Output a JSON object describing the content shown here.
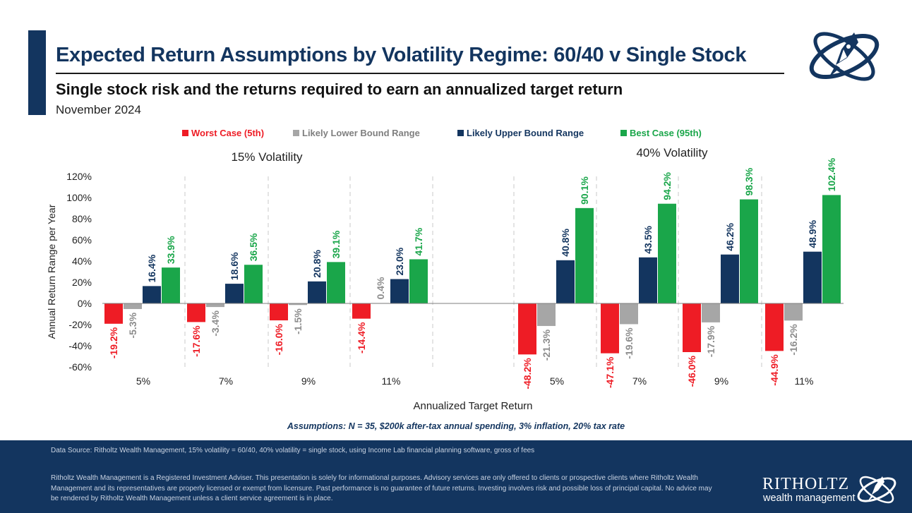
{
  "header": {
    "title": "Expected Return Assumptions by Volatility Regime: 60/40 v Single Stock",
    "subtitle": "Single stock risk and the returns required to earn an annualized target return",
    "date": "November 2024"
  },
  "colors": {
    "navy": "#13355f",
    "worst": "#ee1c25",
    "lower": "#a6a6a6",
    "upper": "#13355f",
    "best": "#1aa64a"
  },
  "chart_data": {
    "type": "bar",
    "legend": [
      "Worst Case (5th)",
      "Likely Lower Bound Range",
      "Likely Upper Bound Range",
      "Best Case (95th)"
    ],
    "legend_position": "top",
    "ylabel": "Annual Return Range per Year",
    "xlabel": "Annualized Target Return",
    "ylim": [
      -60,
      120
    ],
    "yticks": [
      120,
      100,
      80,
      60,
      40,
      20,
      0,
      -20,
      -40,
      -60
    ],
    "ytick_labels": [
      "120%",
      "100%",
      "80%",
      "60%",
      "40%",
      "20%",
      "0%",
      "-20%",
      "-40%",
      "-60%"
    ],
    "groups": [
      {
        "label": "15% Volatility",
        "categories": [
          "5%",
          "7%",
          "9%",
          "11%"
        ],
        "series": [
          {
            "name": "Worst Case (5th)",
            "values": [
              -19.2,
              -17.6,
              -16.0,
              -14.4
            ],
            "labels": [
              "-19.2%",
              "-17.6%",
              "-16.0%",
              "-14.4%"
            ]
          },
          {
            "name": "Likely Lower Bound Range",
            "values": [
              -5.3,
              -3.4,
              -1.5,
              0.4
            ],
            "labels": [
              "-5.3%",
              "-3.4%",
              "-1.5%",
              "0.4%"
            ]
          },
          {
            "name": "Likely Upper Bound Range",
            "values": [
              16.4,
              18.6,
              20.8,
              23.0
            ],
            "labels": [
              "16.4%",
              "18.6%",
              "20.8%",
              "23.0%"
            ]
          },
          {
            "name": "Best Case (95th)",
            "values": [
              33.9,
              36.5,
              39.1,
              41.7
            ],
            "labels": [
              "33.9%",
              "36.5%",
              "39.1%",
              "41.7%"
            ]
          }
        ]
      },
      {
        "label": "40% Volatility",
        "categories": [
          "5%",
          "7%",
          "9%",
          "11%"
        ],
        "series": [
          {
            "name": "Worst Case (5th)",
            "values": [
              -48.2,
              -47.1,
              -46.0,
              -44.9
            ],
            "labels": [
              "-48.2%",
              "-47.1%",
              "-46.0%",
              "-44.9%"
            ]
          },
          {
            "name": "Likely Lower Bound Range",
            "values": [
              -21.3,
              -19.6,
              -17.9,
              -16.2
            ],
            "labels": [
              "-21.3%",
              "-19.6%",
              "-17.9%",
              "-16.2%"
            ]
          },
          {
            "name": "Likely Upper Bound Range",
            "values": [
              40.8,
              43.5,
              46.2,
              48.9
            ],
            "labels": [
              "40.8%",
              "43.5%",
              "46.2%",
              "48.9%"
            ]
          },
          {
            "name": "Best Case (95th)",
            "values": [
              90.1,
              94.2,
              98.3,
              102.4
            ],
            "labels": [
              "90.1%",
              "94.2%",
              "98.3%",
              "102.4%"
            ]
          }
        ]
      }
    ]
  },
  "assumptions": "Assumptions: N = 35, $200k after-tax annual spending, 3% inflation, 20% tax rate",
  "footer": {
    "source": "Data Source: Ritholtz Wealth Management, 15% volatility = 60/40, 40% volatility = single stock, using Income Lab financial planning software, gross of fees",
    "disclaimer": "Ritholtz Wealth Management is a Registered Investment Adviser. This presentation is solely for informational purposes. Advisory services are only offered to clients or prospective clients where Ritholtz Wealth Management and its representatives are properly licensed or exempt from licensure. Past performance is no guarantee of future returns. Investing involves risk and possible loss of principal capital. No advice may be rendered by Ritholtz Wealth Management unless a client service agreement is in place.",
    "brand_name": "RITHOLTZ",
    "brand_sub": "wealth management"
  },
  "icons": {
    "logo": "rocket-orbit-logo"
  }
}
